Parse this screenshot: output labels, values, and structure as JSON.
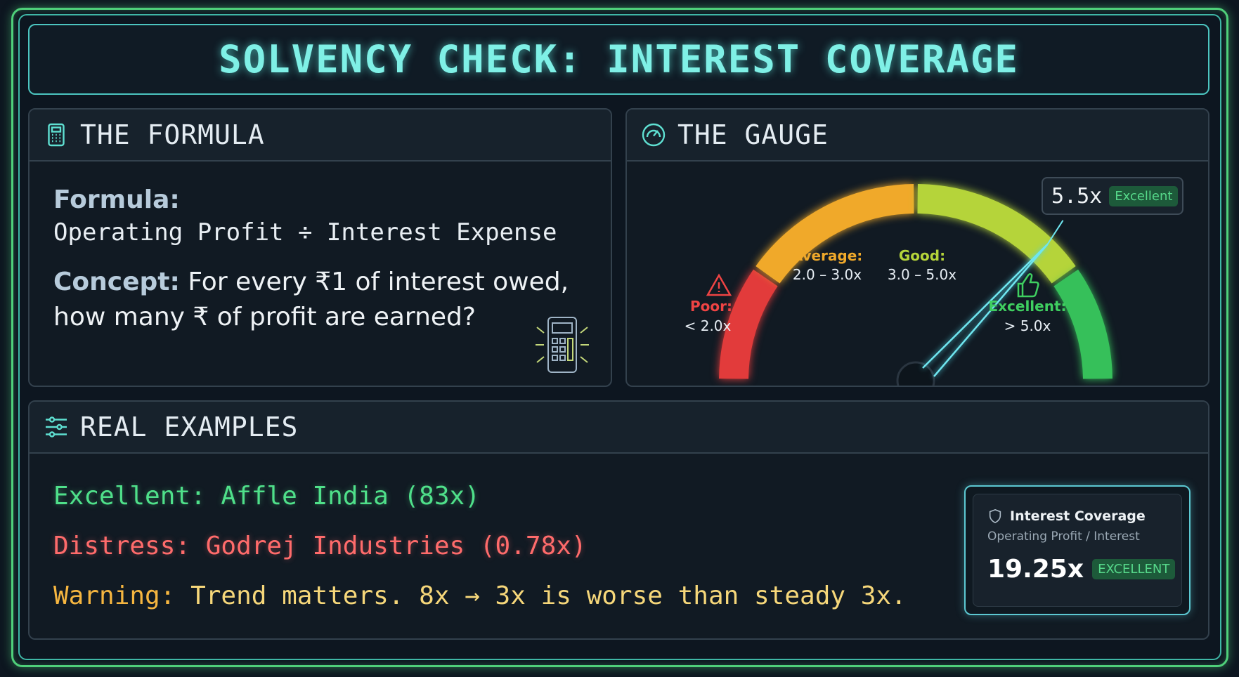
{
  "title": "SOLVENCY CHECK: INTEREST COVERAGE",
  "formula_panel": {
    "heading": "THE FORMULA",
    "icon": "calculator-icon",
    "formula_label": "Formula:",
    "formula": "Operating Profit ÷ Interest Expense",
    "concept_label": "Concept:",
    "concept_text": " For every ₹1 of interest owed, how many ₹ of profit are earned?"
  },
  "gauge_panel": {
    "heading": "THE GAUGE",
    "icon": "speedometer-icon",
    "value": "5.5x",
    "value_badge": "Excellent",
    "zones": [
      {
        "label": "Poor:",
        "range": "< 2.0x",
        "color": "#e23b3b",
        "icon": "warning-icon"
      },
      {
        "label": "Average:",
        "range": "2.0 – 3.0x",
        "color": "#f0a92a"
      },
      {
        "label": "Good:",
        "range": "3.0 – 5.0x",
        "color": "#b5d43a"
      },
      {
        "label": "Excellent:",
        "range": "> 5.0x",
        "color": "#36c05a",
        "icon": "thumbs-up-icon"
      }
    ]
  },
  "examples_panel": {
    "heading": "REAL EXAMPLES",
    "icon": "sliders-icon",
    "lines": [
      {
        "text": "Excellent: Affle India (83x)",
        "color": "#4fe08a"
      },
      {
        "text": "Distress: Godrej Industries (0.78x)",
        "color": "#ff6b6b"
      },
      {
        "prefix": "Warning:",
        "text": " Trend matters. 8x → 3x is worse than steady 3x.",
        "color": "#f6c04a"
      }
    ],
    "card": {
      "title": "Interest Coverage",
      "subtitle": "Operating Profit / Interest",
      "value": "19.25x",
      "badge": "EXCELLENT",
      "icon": "shield-icon"
    }
  }
}
